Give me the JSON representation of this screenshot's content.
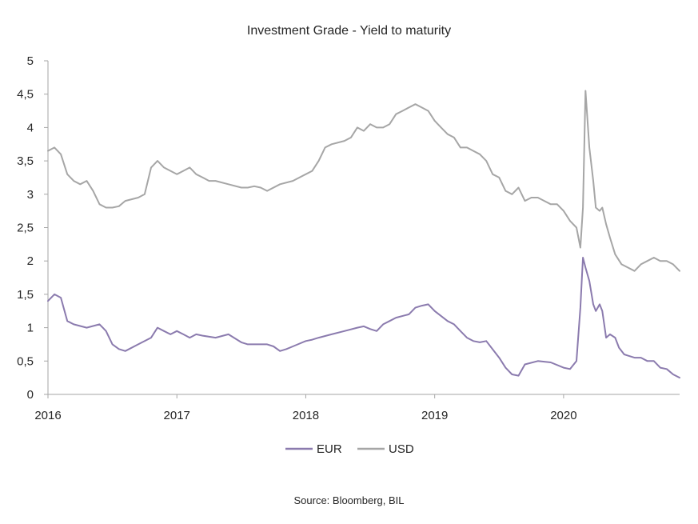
{
  "chart_data": {
    "type": "line",
    "title": "Investment Grade - Yield to maturity",
    "source": "Source: Bloomberg, BIL",
    "xlabel": "",
    "ylabel": "",
    "x_tick_labels": [
      "2016",
      "2017",
      "2018",
      "2019",
      "2020"
    ],
    "y_tick_labels": [
      "0",
      "0,5",
      "1",
      "1,5",
      "2",
      "2,5",
      "3",
      "3,5",
      "4",
      "4,5",
      "5"
    ],
    "ylim": [
      0,
      5
    ],
    "xlim": [
      2016.0,
      2020.9
    ],
    "grid": false,
    "legend_position": "bottom",
    "series": [
      {
        "name": "EUR",
        "color": "#8B7BAE",
        "x": [
          2016.0,
          2016.05,
          2016.1,
          2016.15,
          2016.2,
          2016.3,
          2016.4,
          2016.45,
          2016.5,
          2016.55,
          2016.6,
          2016.7,
          2016.8,
          2016.85,
          2016.9,
          2016.95,
          2017.0,
          2017.05,
          2017.1,
          2017.15,
          2017.2,
          2017.3,
          2017.4,
          2017.5,
          2017.55,
          2017.6,
          2017.7,
          2017.75,
          2017.8,
          2017.85,
          2017.9,
          2018.0,
          2018.05,
          2018.1,
          2018.2,
          2018.3,
          2018.4,
          2018.45,
          2018.5,
          2018.55,
          2018.6,
          2018.65,
          2018.7,
          2018.8,
          2018.85,
          2018.9,
          2018.95,
          2019.0,
          2019.1,
          2019.15,
          2019.2,
          2019.25,
          2019.3,
          2019.35,
          2019.4,
          2019.5,
          2019.55,
          2019.6,
          2019.65,
          2019.7,
          2019.8,
          2019.9,
          2020.0,
          2020.05,
          2020.1,
          2020.13,
          2020.15,
          2020.17,
          2020.2,
          2020.23,
          2020.25,
          2020.28,
          2020.3,
          2020.33,
          2020.36,
          2020.4,
          2020.43,
          2020.47,
          2020.5,
          2020.55,
          2020.6,
          2020.65,
          2020.7,
          2020.75,
          2020.8,
          2020.85,
          2020.9
        ],
        "values": [
          1.4,
          1.5,
          1.45,
          1.1,
          1.05,
          1.0,
          1.05,
          0.95,
          0.75,
          0.68,
          0.65,
          0.75,
          0.85,
          1.0,
          0.95,
          0.9,
          0.95,
          0.9,
          0.85,
          0.9,
          0.88,
          0.85,
          0.9,
          0.78,
          0.75,
          0.75,
          0.75,
          0.72,
          0.65,
          0.68,
          0.72,
          0.8,
          0.82,
          0.85,
          0.9,
          0.95,
          1.0,
          1.02,
          0.98,
          0.95,
          1.05,
          1.1,
          1.15,
          1.2,
          1.3,
          1.33,
          1.35,
          1.25,
          1.1,
          1.05,
          0.95,
          0.85,
          0.8,
          0.78,
          0.8,
          0.55,
          0.4,
          0.3,
          0.28,
          0.45,
          0.5,
          0.48,
          0.4,
          0.38,
          0.5,
          1.3,
          2.05,
          1.9,
          1.7,
          1.35,
          1.25,
          1.35,
          1.25,
          0.85,
          0.9,
          0.85,
          0.7,
          0.6,
          0.58,
          0.55,
          0.55,
          0.5,
          0.5,
          0.4,
          0.38,
          0.3,
          0.25
        ]
      },
      {
        "name": "USD",
        "color": "#A6A6A6",
        "x": [
          2016.0,
          2016.05,
          2016.1,
          2016.15,
          2016.2,
          2016.25,
          2016.3,
          2016.35,
          2016.4,
          2016.45,
          2016.5,
          2016.55,
          2016.6,
          2016.7,
          2016.75,
          2016.8,
          2016.85,
          2016.9,
          2016.95,
          2017.0,
          2017.05,
          2017.1,
          2017.15,
          2017.2,
          2017.25,
          2017.3,
          2017.4,
          2017.5,
          2017.55,
          2017.6,
          2017.65,
          2017.7,
          2017.8,
          2017.9,
          2018.0,
          2018.05,
          2018.1,
          2018.15,
          2018.2,
          2018.3,
          2018.35,
          2018.4,
          2018.45,
          2018.5,
          2018.55,
          2018.6,
          2018.65,
          2018.7,
          2018.75,
          2018.8,
          2018.85,
          2018.9,
          2018.95,
          2019.0,
          2019.05,
          2019.1,
          2019.15,
          2019.2,
          2019.25,
          2019.3,
          2019.35,
          2019.4,
          2019.45,
          2019.5,
          2019.55,
          2019.6,
          2019.65,
          2019.7,
          2019.75,
          2019.8,
          2019.85,
          2019.9,
          2019.95,
          2020.0,
          2020.05,
          2020.1,
          2020.13,
          2020.15,
          2020.17,
          2020.2,
          2020.23,
          2020.25,
          2020.28,
          2020.3,
          2020.33,
          2020.36,
          2020.4,
          2020.45,
          2020.5,
          2020.55,
          2020.6,
          2020.65,
          2020.7,
          2020.75,
          2020.8,
          2020.85,
          2020.9
        ],
        "values": [
          3.65,
          3.7,
          3.6,
          3.3,
          3.2,
          3.15,
          3.2,
          3.05,
          2.85,
          2.8,
          2.8,
          2.82,
          2.9,
          2.95,
          3.0,
          3.4,
          3.5,
          3.4,
          3.35,
          3.3,
          3.35,
          3.4,
          3.3,
          3.25,
          3.2,
          3.2,
          3.15,
          3.1,
          3.1,
          3.12,
          3.1,
          3.05,
          3.15,
          3.2,
          3.3,
          3.35,
          3.5,
          3.7,
          3.75,
          3.8,
          3.85,
          4.0,
          3.95,
          4.05,
          4.0,
          4.0,
          4.05,
          4.2,
          4.25,
          4.3,
          4.35,
          4.3,
          4.25,
          4.1,
          4.0,
          3.9,
          3.85,
          3.7,
          3.7,
          3.65,
          3.6,
          3.5,
          3.3,
          3.25,
          3.05,
          3.0,
          3.1,
          2.9,
          2.95,
          2.95,
          2.9,
          2.85,
          2.85,
          2.75,
          2.6,
          2.5,
          2.2,
          2.8,
          4.55,
          3.7,
          3.2,
          2.8,
          2.75,
          2.8,
          2.55,
          2.35,
          2.1,
          1.95,
          1.9,
          1.85,
          1.95,
          2.0,
          2.05,
          2.0,
          2.0,
          1.95,
          1.85
        ]
      }
    ]
  }
}
